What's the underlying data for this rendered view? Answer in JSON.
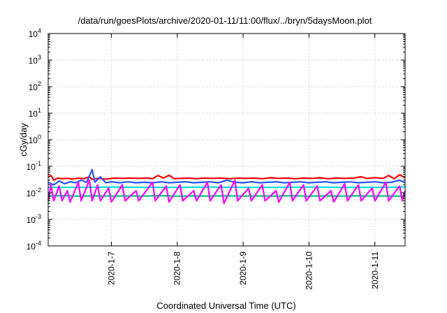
{
  "chart_data": {
    "type": "line",
    "title": "/data/run/goesPlots/archive/2020-01-11/11:00/flux/../bryn/5daysMoon.plot",
    "xlabel": "Coordinated Universal Time (UTC)",
    "ylabel": "cGy/day",
    "y_scale": "log",
    "ylim": [
      0.0001,
      10000
    ],
    "y_ticks": [
      {
        "value": 0.0001,
        "base": "10",
        "exp": "-4"
      },
      {
        "value": 0.001,
        "base": "10",
        "exp": "-3"
      },
      {
        "value": 0.01,
        "base": "10",
        "exp": "-2"
      },
      {
        "value": 0.1,
        "base": "10",
        "exp": "-1"
      },
      {
        "value": 1,
        "base": "10",
        "exp": "0"
      },
      {
        "value": 10,
        "base": "10",
        "exp": "1"
      },
      {
        "value": 100,
        "base": "10",
        "exp": "2"
      },
      {
        "value": 1000,
        "base": "10",
        "exp": "3"
      },
      {
        "value": 10000,
        "base": "10",
        "exp": "4"
      }
    ],
    "xlim": [
      "2020-01-06T01:00",
      "2020-01-11T11:00"
    ],
    "x_ticks": [
      "2020-1-7",
      "2020-1-8",
      "2020-1-9",
      "2020-1-10",
      "2020-1-11"
    ],
    "x_tick_dates": [
      "2020-01-07",
      "2020-01-08",
      "2020-01-09",
      "2020-01-10",
      "2020-01-11"
    ],
    "grid": true,
    "series": [
      {
        "color": "#ff0000",
        "baseline": 0.032,
        "points": [
          [
            "2020-01-06T01:00",
            0.04
          ],
          [
            "2020-01-06T02:00",
            0.045
          ],
          [
            "2020-01-06T03:00",
            0.03
          ],
          [
            "2020-01-06T04:30",
            0.036
          ],
          [
            "2020-01-06T06:00",
            0.034
          ],
          [
            "2020-01-06T08:00",
            0.035
          ],
          [
            "2020-01-06T10:00",
            0.033
          ],
          [
            "2020-01-06T12:00",
            0.036
          ],
          [
            "2020-01-06T14:00",
            0.034
          ],
          [
            "2020-01-06T16:00",
            0.04
          ],
          [
            "2020-01-06T17:00",
            0.032
          ],
          [
            "2020-01-06T19:00",
            0.035
          ],
          [
            "2020-01-06T22:00",
            0.033
          ],
          [
            "2020-01-07T01:00",
            0.036
          ],
          [
            "2020-01-07T04:00",
            0.035
          ],
          [
            "2020-01-07T07:00",
            0.036
          ],
          [
            "2020-01-07T10:00",
            0.035
          ],
          [
            "2020-01-07T13:00",
            0.036
          ],
          [
            "2020-01-07T15:00",
            0.034
          ],
          [
            "2020-01-07T17:00",
            0.045
          ],
          [
            "2020-01-07T19:00",
            0.036
          ],
          [
            "2020-01-07T21:00",
            0.046
          ],
          [
            "2020-01-07T23:00",
            0.034
          ],
          [
            "2020-01-08T01:00",
            0.035
          ],
          [
            "2020-01-08T04:00",
            0.036
          ],
          [
            "2020-01-08T07:00",
            0.034
          ],
          [
            "2020-01-08T10:00",
            0.036
          ],
          [
            "2020-01-08T13:00",
            0.035
          ],
          [
            "2020-01-08T16:00",
            0.036
          ],
          [
            "2020-01-08T19:00",
            0.034
          ],
          [
            "2020-01-08T22:00",
            0.036
          ],
          [
            "2020-01-09T01:00",
            0.035
          ],
          [
            "2020-01-09T04:00",
            0.036
          ],
          [
            "2020-01-09T07:00",
            0.034
          ],
          [
            "2020-01-09T10:00",
            0.037
          ],
          [
            "2020-01-09T13:00",
            0.035
          ],
          [
            "2020-01-09T16:00",
            0.036
          ],
          [
            "2020-01-09T19:00",
            0.034
          ],
          [
            "2020-01-09T22:00",
            0.036
          ],
          [
            "2020-01-10T01:00",
            0.035
          ],
          [
            "2020-01-10T04:00",
            0.037
          ],
          [
            "2020-01-10T07:00",
            0.034
          ],
          [
            "2020-01-10T10:00",
            0.036
          ],
          [
            "2020-01-10T13:00",
            0.035
          ],
          [
            "2020-01-10T16:00",
            0.036
          ],
          [
            "2020-01-10T19:00",
            0.04
          ],
          [
            "2020-01-10T21:00",
            0.035
          ],
          [
            "2020-01-11T00:00",
            0.037
          ],
          [
            "2020-01-11T03:00",
            0.035
          ],
          [
            "2020-01-11T05:00",
            0.045
          ],
          [
            "2020-01-11T07:00",
            0.034
          ],
          [
            "2020-01-11T09:00",
            0.048
          ],
          [
            "2020-01-11T11:00",
            0.037
          ]
        ]
      },
      {
        "color": "#2255ff",
        "baseline": 0.024,
        "points": [
          [
            "2020-01-06T01:00",
            0.025
          ],
          [
            "2020-01-06T03:00",
            0.02
          ],
          [
            "2020-01-06T05:00",
            0.028
          ],
          [
            "2020-01-06T07:00",
            0.022
          ],
          [
            "2020-01-06T09:00",
            0.026
          ],
          [
            "2020-01-06T11:00",
            0.024
          ],
          [
            "2020-01-06T13:00",
            0.03
          ],
          [
            "2020-01-06T15:00",
            0.025
          ],
          [
            "2020-01-06T17:00",
            0.075
          ],
          [
            "2020-01-06T18:00",
            0.025
          ],
          [
            "2020-01-06T20:00",
            0.04
          ],
          [
            "2020-01-06T22:00",
            0.024
          ],
          [
            "2020-01-07T00:00",
            0.026
          ],
          [
            "2020-01-07T03:00",
            0.024
          ],
          [
            "2020-01-07T06:00",
            0.026
          ],
          [
            "2020-01-07T09:00",
            0.024
          ],
          [
            "2020-01-07T12:00",
            0.025
          ],
          [
            "2020-01-07T15:00",
            0.024
          ],
          [
            "2020-01-07T18:00",
            0.026
          ],
          [
            "2020-01-07T21:00",
            0.024
          ],
          [
            "2020-01-08T00:00",
            0.025
          ],
          [
            "2020-01-08T03:00",
            0.026
          ],
          [
            "2020-01-08T06:00",
            0.024
          ],
          [
            "2020-01-08T09:00",
            0.025
          ],
          [
            "2020-01-08T12:00",
            0.026
          ],
          [
            "2020-01-08T15:00",
            0.024
          ],
          [
            "2020-01-08T18:00",
            0.03
          ],
          [
            "2020-01-08T21:00",
            0.025
          ],
          [
            "2020-01-09T00:00",
            0.024
          ],
          [
            "2020-01-09T03:00",
            0.026
          ],
          [
            "2020-01-09T06:00",
            0.024
          ],
          [
            "2020-01-09T09:00",
            0.025
          ],
          [
            "2020-01-09T12:00",
            0.026
          ],
          [
            "2020-01-09T15:00",
            0.024
          ],
          [
            "2020-01-09T18:00",
            0.025
          ],
          [
            "2020-01-09T21:00",
            0.026
          ],
          [
            "2020-01-10T00:00",
            0.024
          ],
          [
            "2020-01-10T03:00",
            0.025
          ],
          [
            "2020-01-10T06:00",
            0.026
          ],
          [
            "2020-01-10T09:00",
            0.024
          ],
          [
            "2020-01-10T12:00",
            0.025
          ],
          [
            "2020-01-10T15:00",
            0.026
          ],
          [
            "2020-01-10T18:00",
            0.024
          ],
          [
            "2020-01-10T21:00",
            0.025
          ],
          [
            "2020-01-11T00:00",
            0.026
          ],
          [
            "2020-01-11T03:00",
            0.024
          ],
          [
            "2020-01-11T06:00",
            0.025
          ],
          [
            "2020-01-11T09:00",
            0.03
          ],
          [
            "2020-01-11T11:00",
            0.024
          ]
        ]
      },
      {
        "color": "#00dddd",
        "baseline": 0.016,
        "points": [
          [
            "2020-01-06T01:00",
            0.016
          ],
          [
            "2020-01-06T12:00",
            0.016
          ],
          [
            "2020-01-07T00:00",
            0.0165
          ],
          [
            "2020-01-07T12:00",
            0.016
          ],
          [
            "2020-01-08T00:00",
            0.016
          ],
          [
            "2020-01-08T12:00",
            0.0165
          ],
          [
            "2020-01-09T00:00",
            0.016
          ],
          [
            "2020-01-09T12:00",
            0.016
          ],
          [
            "2020-01-10T00:00",
            0.0165
          ],
          [
            "2020-01-10T12:00",
            0.016
          ],
          [
            "2020-01-11T00:00",
            0.016
          ],
          [
            "2020-01-11T11:00",
            0.0165
          ]
        ]
      },
      {
        "color": "#00c080",
        "baseline": 0.0075,
        "points": [
          [
            "2020-01-06T01:00",
            0.0075
          ],
          [
            "2020-01-06T06:00",
            0.0078
          ],
          [
            "2020-01-06T12:00",
            0.0075
          ],
          [
            "2020-01-06T18:00",
            0.0077
          ],
          [
            "2020-01-07T00:00",
            0.0075
          ],
          [
            "2020-01-07T06:00",
            0.0076
          ],
          [
            "2020-01-07T12:00",
            0.0075
          ],
          [
            "2020-01-07T18:00",
            0.0078
          ],
          [
            "2020-01-08T00:00",
            0.0075
          ],
          [
            "2020-01-08T06:00",
            0.0076
          ],
          [
            "2020-01-08T12:00",
            0.0075
          ],
          [
            "2020-01-08T18:00",
            0.0077
          ],
          [
            "2020-01-09T00:00",
            0.0075
          ],
          [
            "2020-01-09T06:00",
            0.0076
          ],
          [
            "2020-01-09T12:00",
            0.0075
          ],
          [
            "2020-01-09T18:00",
            0.0078
          ],
          [
            "2020-01-10T00:00",
            0.0075
          ],
          [
            "2020-01-10T06:00",
            0.0076
          ],
          [
            "2020-01-10T12:00",
            0.0075
          ],
          [
            "2020-01-10T18:00",
            0.0077
          ],
          [
            "2020-01-11T00:00",
            0.0075
          ],
          [
            "2020-01-11T06:00",
            0.0076
          ],
          [
            "2020-01-11T11:00",
            0.0075
          ]
        ]
      },
      {
        "color": "#ff00ff",
        "baseline": 0.005,
        "points": [
          [
            "2020-01-06T01:00",
            0.005
          ],
          [
            "2020-01-06T02:00",
            0.02
          ],
          [
            "2020-01-06T03:00",
            0.005
          ],
          [
            "2020-01-06T05:00",
            0.018
          ],
          [
            "2020-01-06T06:00",
            0.005
          ],
          [
            "2020-01-06T08:00",
            0.012
          ],
          [
            "2020-01-06T09:00",
            0.0045
          ],
          [
            "2020-01-06T12:00",
            0.025
          ],
          [
            "2020-01-06T13:00",
            0.005
          ],
          [
            "2020-01-06T16:00",
            0.03
          ],
          [
            "2020-01-06T17:00",
            0.005
          ],
          [
            "2020-01-06T19:00",
            0.02
          ],
          [
            "2020-01-06T20:00",
            0.005
          ],
          [
            "2020-01-06T23:00",
            0.015
          ],
          [
            "2020-01-07T00:00",
            0.0045
          ],
          [
            "2020-01-07T04:00",
            0.02
          ],
          [
            "2020-01-07T05:00",
            0.005
          ],
          [
            "2020-01-07T09:00",
            0.012
          ],
          [
            "2020-01-07T10:00",
            0.005
          ],
          [
            "2020-01-07T15:00",
            0.025
          ],
          [
            "2020-01-07T16:00",
            0.005
          ],
          [
            "2020-01-07T20:00",
            0.018
          ],
          [
            "2020-01-07T21:00",
            0.0045
          ],
          [
            "2020-01-08T01:00",
            0.02
          ],
          [
            "2020-01-08T02:00",
            0.005
          ],
          [
            "2020-01-08T06:00",
            0.012
          ],
          [
            "2020-01-08T07:00",
            0.005
          ],
          [
            "2020-01-08T11:00",
            0.025
          ],
          [
            "2020-01-08T12:00",
            0.005
          ],
          [
            "2020-01-08T16:00",
            0.02
          ],
          [
            "2020-01-08T17:00",
            0.004
          ],
          [
            "2020-01-08T21:00",
            0.03
          ],
          [
            "2020-01-08T22:00",
            0.005
          ],
          [
            "2020-01-09T02:00",
            0.015
          ],
          [
            "2020-01-09T03:00",
            0.005
          ],
          [
            "2020-01-09T07:00",
            0.02
          ],
          [
            "2020-01-09T08:00",
            0.005
          ],
          [
            "2020-01-09T12:00",
            0.012
          ],
          [
            "2020-01-09T13:00",
            0.0045
          ],
          [
            "2020-01-09T17:00",
            0.025
          ],
          [
            "2020-01-09T18:00",
            0.005
          ],
          [
            "2020-01-09T22:00",
            0.02
          ],
          [
            "2020-01-09T23:00",
            0.005
          ],
          [
            "2020-01-10T03:00",
            0.018
          ],
          [
            "2020-01-10T04:00",
            0.005
          ],
          [
            "2020-01-10T08:00",
            0.012
          ],
          [
            "2020-01-10T09:00",
            0.0045
          ],
          [
            "2020-01-10T13:00",
            0.022
          ],
          [
            "2020-01-10T14:00",
            0.005
          ],
          [
            "2020-01-10T18:00",
            0.02
          ],
          [
            "2020-01-10T19:00",
            0.005
          ],
          [
            "2020-01-10T23:00",
            0.015
          ],
          [
            "2020-01-11T00:00",
            0.005
          ],
          [
            "2020-01-11T04:00",
            0.025
          ],
          [
            "2020-01-11T05:00",
            0.005
          ],
          [
            "2020-01-11T09:00",
            0.018
          ],
          [
            "2020-01-11T10:00",
            0.005
          ],
          [
            "2020-01-11T11:00",
            0.012
          ]
        ]
      }
    ]
  }
}
